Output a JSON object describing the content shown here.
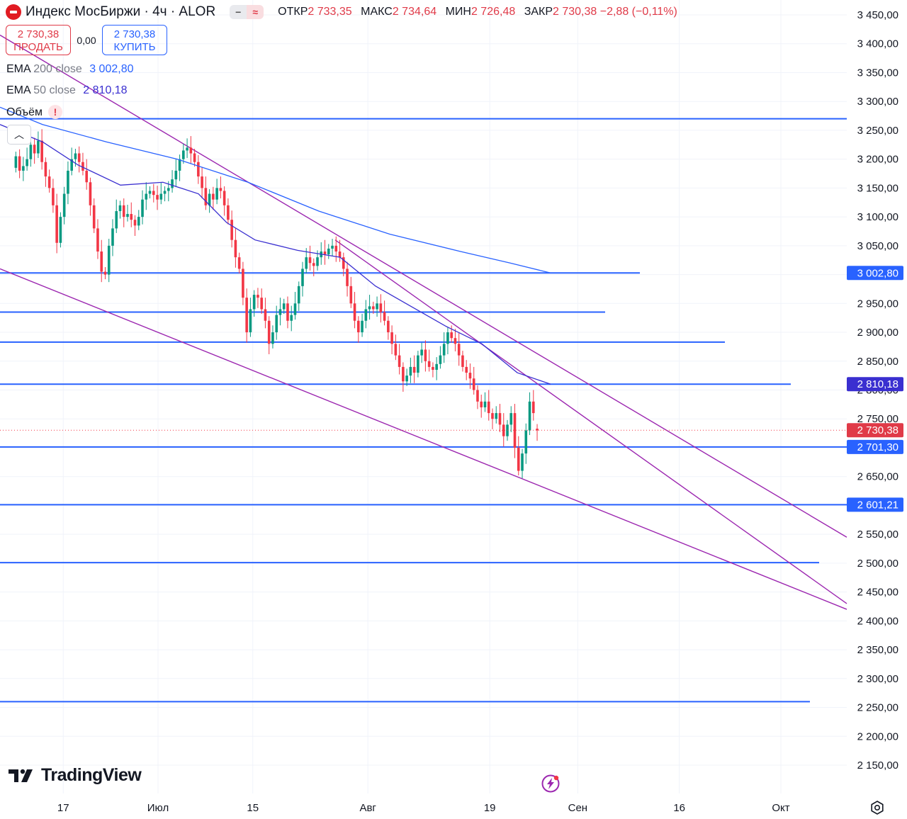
{
  "header": {
    "symbol_title": "Индекс МосБиржи · 4ч · ALOR",
    "ohlc": [
      {
        "key": "ОТКР",
        "value": "2 733,35"
      },
      {
        "key": "МАКС",
        "value": "2 734,64"
      },
      {
        "key": "МИН",
        "value": "2 726,48"
      },
      {
        "key": "ЗАКР",
        "value": "2 730,38 −2,88 (−0,11%)"
      }
    ]
  },
  "trade": {
    "sell_price": "2 730,38",
    "sell_label": "ПРОДАТЬ",
    "spread": "0,00",
    "buy_price": "2 730,38",
    "buy_label": "КУПИТЬ"
  },
  "indicators": [
    {
      "name": "EMA",
      "params": "200 close",
      "value": "3 002,80",
      "color": "#2962ff"
    },
    {
      "name": "EMA",
      "params": "50 close",
      "value": "2 810,18",
      "color": "#3a2fd0"
    },
    {
      "name": "Объём",
      "params": "",
      "value": "",
      "color": "#131722"
    }
  ],
  "branding": {
    "logo_text": "TradingView"
  },
  "icons": {
    "collapse": "chevron-up-icon",
    "alert": "exclamation-icon",
    "bolt": "lightning-icon",
    "settings": "gear-icon"
  },
  "chart_data": {
    "type": "candlestick",
    "timeframe": "4h",
    "ylim": [
      2130,
      3470
    ],
    "y_ticks": [
      "3 450,00",
      "3 400,00",
      "3 350,00",
      "3 300,00",
      "3 250,00",
      "3 200,00",
      "3 150,00",
      "3 100,00",
      "3 050,00",
      "3 000,00",
      "2 950,00",
      "2 900,00",
      "2 850,00",
      "2 800,00",
      "2 750,00",
      "2 700,00",
      "2 650,00",
      "2 600,00",
      "2 550,00",
      "2 500,00",
      "2 450,00",
      "2 400,00",
      "2 350,00",
      "2 300,00",
      "2 250,00",
      "2 200,00",
      "2 150,00"
    ],
    "y_tick_values": [
      3450,
      3400,
      3350,
      3300,
      3250,
      3200,
      3150,
      3100,
      3050,
      3000,
      2950,
      2900,
      2850,
      2800,
      2750,
      2700,
      2650,
      2600,
      2550,
      2500,
      2450,
      2400,
      2350,
      2300,
      2250,
      2200,
      2150
    ],
    "x_ticks": [
      "17",
      "Июл",
      "15",
      "Авг",
      "19",
      "Сен",
      "16",
      "Окт"
    ],
    "x_tick_dates": [
      "2024-06-17",
      "2024-07-01",
      "2024-07-15",
      "2024-08-01",
      "2024-08-19",
      "2024-09-01",
      "2024-09-16",
      "2024-10-01"
    ],
    "dates": [
      "2024-06-10",
      "2024-08-26"
    ],
    "candles_close": [
      3205,
      3180,
      3188,
      3200,
      3225,
      3210,
      3232,
      3195,
      3170,
      3150,
      3120,
      3055,
      3100,
      3140,
      3180,
      3200,
      3210,
      3195,
      3180,
      3160,
      3120,
      3080,
      3040,
      3005,
      3000,
      3050,
      3080,
      3110,
      3120,
      3100,
      3105,
      3095,
      3085,
      3100,
      3130,
      3140,
      3145,
      3138,
      3130,
      3140,
      3145,
      3150,
      3165,
      3180,
      3200,
      3215,
      3220,
      3210,
      3195,
      3170,
      3150,
      3120,
      3140,
      3130,
      3150,
      3145,
      3120,
      3095,
      3060,
      3030,
      3010,
      2960,
      2900,
      2940,
      2965,
      2960,
      2940,
      2920,
      2880,
      2900,
      2930,
      2940,
      2950,
      2920,
      2930,
      2950,
      2980,
      3010,
      3030,
      3020,
      3015,
      3030,
      3040,
      3035,
      3045,
      3050,
      3040,
      3030,
      3010,
      2980,
      2950,
      2920,
      2900,
      2920,
      2940,
      2945,
      2940,
      2950,
      2935,
      2920,
      2900,
      2880,
      2860,
      2840,
      2815,
      2825,
      2840,
      2830,
      2860,
      2870,
      2850,
      2840,
      2835,
      2845,
      2860,
      2880,
      2900,
      2890,
      2880,
      2860,
      2840,
      2830,
      2820,
      2800,
      2780,
      2770,
      2780,
      2760,
      2750,
      2760,
      2740,
      2720,
      2740,
      2760,
      2700,
      2660,
      2690,
      2730,
      2780,
      2760,
      2730
    ],
    "candles_open": [
      3185,
      3205,
      3180,
      3188,
      3200,
      3225,
      3210,
      3232,
      3195,
      3170,
      3150,
      3120,
      3055,
      3100,
      3140,
      3180,
      3200,
      3210,
      3195,
      3180,
      3160,
      3120,
      3080,
      3040,
      3005,
      3000,
      3050,
      3080,
      3110,
      3120,
      3100,
      3105,
      3095,
      3085,
      3100,
      3130,
      3140,
      3145,
      3138,
      3130,
      3140,
      3145,
      3150,
      3165,
      3180,
      3200,
      3215,
      3220,
      3210,
      3195,
      3170,
      3150,
      3120,
      3140,
      3130,
      3150,
      3145,
      3120,
      3095,
      3060,
      3030,
      3010,
      2960,
      2900,
      2940,
      2965,
      2960,
      2940,
      2920,
      2880,
      2900,
      2930,
      2940,
      2950,
      2920,
      2930,
      2950,
      2980,
      3010,
      3030,
      3020,
      3015,
      3030,
      3040,
      3035,
      3045,
      3050,
      3040,
      3030,
      3010,
      2980,
      2950,
      2920,
      2900,
      2920,
      2940,
      2945,
      2940,
      2950,
      2935,
      2920,
      2900,
      2880,
      2860,
      2840,
      2815,
      2825,
      2840,
      2830,
      2860,
      2870,
      2850,
      2840,
      2835,
      2845,
      2860,
      2880,
      2900,
      2890,
      2880,
      2860,
      2840,
      2830,
      2820,
      2800,
      2780,
      2770,
      2780,
      2760,
      2750,
      2760,
      2740,
      2720,
      2740,
      2760,
      2700,
      2660,
      2690,
      2730,
      2780,
      2733
    ],
    "ema200": [
      [
        0,
        3290
      ],
      [
        60,
        3260
      ],
      [
        150,
        3230
      ],
      [
        250,
        3200
      ],
      [
        350,
        3160
      ],
      [
        450,
        3110
      ],
      [
        550,
        3070
      ],
      [
        650,
        3040
      ],
      [
        720,
        3020
      ],
      [
        777,
        3002.8
      ]
    ],
    "ema50": [
      [
        0,
        3260
      ],
      [
        60,
        3230
      ],
      [
        110,
        3190
      ],
      [
        170,
        3155
      ],
      [
        230,
        3160
      ],
      [
        280,
        3140
      ],
      [
        320,
        3090
      ],
      [
        360,
        3060
      ],
      [
        420,
        3042
      ],
      [
        480,
        3030
      ],
      [
        530,
        2980
      ],
      [
        580,
        2945
      ],
      [
        630,
        2910
      ],
      [
        680,
        2880
      ],
      [
        730,
        2830
      ],
      [
        777,
        2810.18
      ]
    ],
    "horizontal_levels": [
      3270,
      3002.8,
      2935,
      2883,
      2810.18,
      2701.3,
      2601.21,
      2501,
      2260
    ],
    "price_labels": [
      {
        "text": "3 002,80",
        "color": "#2962ff"
      },
      {
        "text": "2 810,18",
        "color": "#3a2fd0"
      },
      {
        "text": "2 730,38",
        "color": "#e03a48"
      },
      {
        "text": "2 701,30",
        "color": "#2962ff"
      },
      {
        "text": "2 601,21",
        "color": "#2962ff"
      }
    ],
    "last_price": 2730.38,
    "trendlines_color": "#9c27b0",
    "colors": {
      "up": "#089981",
      "down": "#f23645",
      "level": "#2962ff",
      "grid": "#f0f3fa"
    }
  }
}
